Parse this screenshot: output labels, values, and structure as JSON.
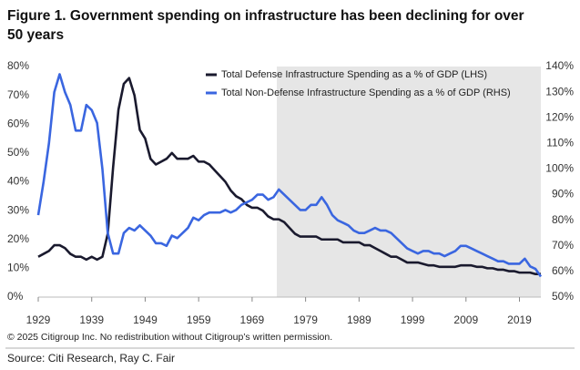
{
  "chart_data": {
    "type": "line",
    "title": "Figure 1. Government spending on infrastructure has been declining for over",
    "title_line2": "50 years",
    "notice": "© 2025 Citigroup Inc. No redistribution without Citigroup’s written permission.",
    "source": "Source: Citi Research, Ray C. Fair",
    "legend": "top-right",
    "x": [
      1929,
      1930,
      1931,
      1932,
      1933,
      1934,
      1935,
      1936,
      1937,
      1938,
      1939,
      1940,
      1941,
      1942,
      1943,
      1944,
      1945,
      1946,
      1947,
      1948,
      1949,
      1950,
      1951,
      1952,
      1953,
      1954,
      1955,
      1956,
      1957,
      1958,
      1959,
      1960,
      1961,
      1962,
      1963,
      1964,
      1965,
      1966,
      1967,
      1968,
      1969,
      1970,
      1971,
      1972,
      1973,
      1974,
      1975,
      1976,
      1977,
      1978,
      1979,
      1980,
      1981,
      1982,
      1983,
      1984,
      1985,
      1986,
      1987,
      1988,
      1989,
      1990,
      1991,
      1992,
      1993,
      1994,
      1995,
      1996,
      1997,
      1998,
      1999,
      2000,
      2001,
      2002,
      2003,
      2004,
      2005,
      2006,
      2007,
      2008,
      2009,
      2010,
      2011,
      2012,
      2013,
      2014,
      2015,
      2016,
      2017,
      2018,
      2019,
      2020,
      2021,
      2022,
      2023
    ],
    "xlim": [
      1929,
      2023
    ],
    "xticks": [
      1929,
      1939,
      1949,
      1959,
      1969,
      1979,
      1989,
      1999,
      2009,
      2019
    ],
    "ylim": [
      0,
      80
    ],
    "yticks": [
      {
        "value": 0,
        "label": "0%"
      },
      {
        "value": 10,
        "label": "10%"
      },
      {
        "value": 20,
        "label": "20%"
      },
      {
        "value": 30,
        "label": "30%"
      },
      {
        "value": 40,
        "label": "40%"
      },
      {
        "value": 50,
        "label": "50%"
      },
      {
        "value": 60,
        "label": "60%"
      },
      {
        "value": 70,
        "label": "70%"
      },
      {
        "value": 80,
        "label": "80%"
      }
    ],
    "y2lim": [
      50,
      140
    ],
    "y2ticks": [
      {
        "value": 50,
        "label": "50%"
      },
      {
        "value": 60,
        "label": "60%"
      },
      {
        "value": 70,
        "label": "70%"
      },
      {
        "value": 80,
        "label": "80%"
      },
      {
        "value": 90,
        "label": "90%"
      },
      {
        "value": 100,
        "label": "100%"
      },
      {
        "value": 110,
        "label": "110%"
      },
      {
        "value": 120,
        "label": "120%"
      },
      {
        "value": 130,
        "label": "130%"
      },
      {
        "value": 140,
        "label": "140%"
      }
    ],
    "series": [
      {
        "name": "Total Defense Infrastructure Spending as a % of GDP (LHS)",
        "color": "#1a1a2e",
        "axis": "y",
        "values": [
          14,
          15,
          16,
          18,
          18,
          17,
          15,
          14,
          14,
          13,
          14,
          13,
          14,
          22,
          45,
          65,
          74,
          76,
          70,
          58,
          55,
          48,
          46,
          47,
          48,
          50,
          48,
          48,
          48,
          49,
          47,
          47,
          46,
          44,
          42,
          40,
          37,
          35,
          34,
          32,
          31,
          31,
          30,
          28,
          27,
          27,
          26,
          24,
          22,
          21,
          21,
          21,
          21,
          20,
          20,
          20,
          20,
          19,
          19,
          19,
          19,
          18,
          18,
          17,
          16,
          15,
          14,
          14,
          13,
          12,
          12,
          12,
          11.5,
          11,
          11,
          10.5,
          10.5,
          10.5,
          10.5,
          11,
          11,
          11,
          10.5,
          10.5,
          10,
          10,
          9.5,
          9.5,
          9,
          9,
          8.5,
          8.5,
          8.5,
          8,
          8
        ]
      },
      {
        "name": "Total Non-Defense Infrastructure Spending as a % of GDP (RHS)",
        "color": "#3a66e0",
        "axis": "y2",
        "values": [
          82,
          95,
          110,
          130,
          137,
          130,
          125,
          115,
          115,
          125,
          123,
          118,
          100,
          75,
          67,
          67,
          75,
          77,
          76,
          78,
          76,
          74,
          71,
          71,
          70,
          74,
          73,
          75,
          77,
          81,
          80,
          82,
          83,
          83,
          83,
          84,
          83,
          84,
          86,
          87,
          88,
          90,
          90,
          88,
          89,
          92,
          90,
          88,
          86,
          84,
          84,
          86,
          86,
          89,
          86,
          82,
          80,
          79,
          78,
          76,
          75,
          75,
          76,
          77,
          76,
          76,
          75,
          73,
          71,
          69,
          68,
          67,
          68,
          68,
          67,
          67,
          66,
          67,
          68,
          70,
          70,
          69,
          68,
          67,
          66,
          65,
          64,
          64,
          63,
          63,
          63,
          65,
          62,
          61,
          58
        ]
      }
    ]
  }
}
